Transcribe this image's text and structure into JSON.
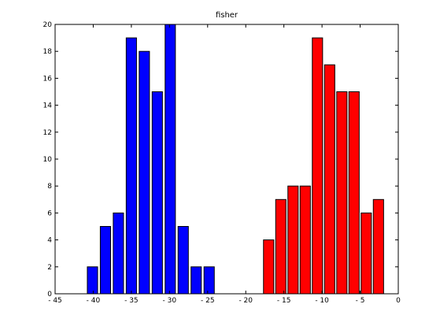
{
  "chart_data": {
    "type": "bar",
    "title": "fisher",
    "xlabel": "",
    "ylabel": "",
    "xlim": [
      -45,
      0
    ],
    "ylim": [
      0,
      20
    ],
    "xticks": [
      -45,
      -40,
      -35,
      -30,
      -25,
      -20,
      -15,
      -10,
      -5,
      0
    ],
    "yticks": [
      0,
      2,
      4,
      6,
      8,
      10,
      12,
      14,
      16,
      18,
      20
    ],
    "grid": false,
    "legend": "none",
    "series": [
      {
        "color": "#0000ff",
        "bars": [
          {
            "x": -40.1,
            "value": 2
          },
          {
            "x": -38.4,
            "value": 5
          },
          {
            "x": -36.7,
            "value": 6
          },
          {
            "x": -35.0,
            "value": 19
          },
          {
            "x": -33.3,
            "value": 18
          },
          {
            "x": -31.6,
            "value": 15
          },
          {
            "x": -29.9,
            "value": 20
          },
          {
            "x": -28.2,
            "value": 5
          },
          {
            "x": -26.5,
            "value": 2
          },
          {
            "x": -24.8,
            "value": 2
          }
        ]
      },
      {
        "color": "#ff0000",
        "bars": [
          {
            "x": -17.0,
            "value": 4
          },
          {
            "x": -15.4,
            "value": 7
          },
          {
            "x": -13.8,
            "value": 8
          },
          {
            "x": -12.2,
            "value": 8
          },
          {
            "x": -10.6,
            "value": 19
          },
          {
            "x": -9.0,
            "value": 17
          },
          {
            "x": -7.4,
            "value": 15
          },
          {
            "x": -5.8,
            "value": 15
          },
          {
            "x": -4.2,
            "value": 6
          },
          {
            "x": -2.6,
            "value": 7
          }
        ]
      }
    ]
  }
}
